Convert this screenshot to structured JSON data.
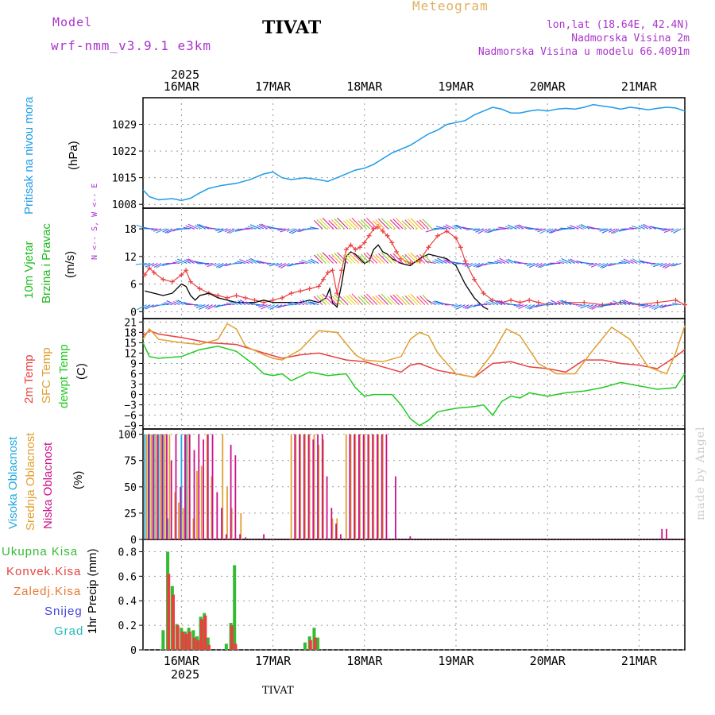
{
  "header": {
    "model_label": "Model",
    "model_name": "wrf-nmm_v3.9.1 e3km",
    "station": "TIVAT",
    "product": "Meteogram",
    "coords": "lon,lat (18.64E, 42.4N)",
    "elevation": "Nadmorska Visina 2m",
    "model_elevation": "Nadmorska Visina u modelu 66.4091m",
    "year": "2025",
    "footer_station": "TIVAT",
    "credit": "made by Angel"
  },
  "colors": {
    "pressure": "#1e9be8",
    "wind_label": "#22bb22",
    "temp2m": "#e84040",
    "sfc": "#e0a030",
    "dewpt": "#22cc22",
    "high_cloud": "#22aadd",
    "mid_cloud": "#e0a030",
    "low_cloud": "#cc1188",
    "total_precip": "#33bb33",
    "conv_precip": "#e84040",
    "freezing": "#e87830",
    "snow": "#4444dd",
    "hail": "#22bbbb",
    "wind_speed": "#000000",
    "wind_gust": "#e84040",
    "purple": "#aa33cc"
  },
  "chart_data": [
    {
      "type": "line",
      "panel": "pressure",
      "ylabel": [
        "Pritisak na nivou mora",
        "(hPa)"
      ],
      "yticks": [
        1008,
        1015,
        1022,
        1029
      ],
      "ylim": [
        1007,
        1036
      ],
      "xlim": [
        15.58,
        21.5
      ],
      "days": [
        "16MAR",
        "17MAR",
        "18MAR",
        "19MAR",
        "20MAR",
        "21MAR"
      ],
      "day_positions": [
        16,
        17,
        18,
        19,
        20,
        21
      ],
      "x": [
        15.58,
        15.65,
        15.75,
        15.9,
        16.0,
        16.1,
        16.2,
        16.3,
        16.45,
        16.6,
        16.75,
        16.9,
        17.0,
        17.1,
        17.2,
        17.35,
        17.5,
        17.6,
        17.75,
        17.9,
        18.0,
        18.1,
        18.2,
        18.3,
        18.4,
        18.5,
        18.6,
        18.7,
        18.8,
        18.9,
        19.0,
        19.1,
        19.2,
        19.3,
        19.4,
        19.5,
        19.6,
        19.7,
        19.8,
        19.9,
        20.0,
        20.1,
        20.2,
        20.3,
        20.4,
        20.5,
        20.6,
        20.7,
        20.8,
        20.9,
        21.0,
        21.1,
        21.2,
        21.3,
        21.4,
        21.5
      ],
      "values": [
        1011.8,
        1010.0,
        1009.2,
        1009.5,
        1009.0,
        1009.6,
        1011.0,
        1012.2,
        1013.0,
        1013.5,
        1014.5,
        1016.0,
        1016.5,
        1015.0,
        1014.5,
        1015.0,
        1014.5,
        1014.0,
        1015.5,
        1017.0,
        1017.5,
        1018.5,
        1020.0,
        1021.5,
        1022.5,
        1023.5,
        1025.0,
        1026.5,
        1027.5,
        1029.0,
        1029.5,
        1030.0,
        1031.5,
        1032.5,
        1033.5,
        1033.0,
        1032.0,
        1032.0,
        1032.5,
        1032.8,
        1032.5,
        1033.0,
        1033.2,
        1033.0,
        1033.5,
        1034.2,
        1033.8,
        1033.5,
        1033.0,
        1033.5,
        1033.2,
        1032.8,
        1033.2,
        1033.5,
        1033.3,
        1032.5
      ]
    },
    {
      "type": "line",
      "panel": "wind",
      "ylabel": [
        "10m Vjetar",
        "Brzina i Pravac",
        "(m/s)"
      ],
      "direction_legend": "N <-- S, W <-- E",
      "yticks": [
        0,
        6,
        12,
        18
      ],
      "ylim": [
        -1.5,
        22.5
      ],
      "series": [
        {
          "name": "speed",
          "x": [
            15.6,
            15.7,
            15.8,
            15.9,
            16.0,
            16.05,
            16.1,
            16.15,
            16.2,
            16.3,
            16.4,
            16.5,
            16.6,
            16.7,
            16.8,
            16.9,
            17.0,
            17.1,
            17.2,
            17.3,
            17.4,
            17.5,
            17.58,
            17.62,
            17.65,
            17.7,
            17.75,
            17.8,
            17.85,
            17.9,
            17.95,
            18.0,
            18.05,
            18.1,
            18.15,
            18.2,
            18.25,
            18.3,
            18.4,
            18.5,
            18.6,
            18.7,
            18.8,
            18.9,
            19.0,
            19.05,
            19.1,
            19.2,
            19.3,
            19.35
          ],
          "values": [
            4.5,
            4.0,
            3.5,
            4.0,
            6.0,
            5.5,
            3.5,
            2.5,
            3.5,
            4.0,
            3.0,
            2.5,
            2.0,
            2.0,
            2.0,
            2.5,
            2.0,
            2.0,
            2.0,
            2.0,
            2.5,
            2.0,
            3.0,
            5.0,
            2.0,
            1.0,
            6.0,
            12.0,
            13.0,
            12.5,
            11.5,
            10.5,
            11.0,
            13.5,
            14.5,
            13.0,
            12.5,
            11.5,
            10.5,
            10.0,
            11.5,
            12.5,
            12.0,
            11.5,
            10.0,
            8.0,
            6.0,
            3.0,
            1.0,
            0.5
          ]
        },
        {
          "name": "gust",
          "x": [
            15.6,
            15.65,
            15.7,
            15.8,
            15.9,
            16.0,
            16.05,
            16.1,
            16.2,
            16.3,
            16.4,
            16.5,
            16.6,
            16.7,
            16.8,
            16.9,
            17.0,
            17.1,
            17.2,
            17.3,
            17.4,
            17.5,
            17.55,
            17.6,
            17.65,
            17.7,
            17.75,
            17.8,
            17.85,
            17.9,
            17.95,
            18.0,
            18.05,
            18.1,
            18.15,
            18.2,
            18.25,
            18.3,
            18.35,
            18.4,
            18.5,
            18.6,
            18.7,
            18.8,
            18.9,
            19.0,
            19.05,
            19.1,
            19.2,
            19.3,
            19.4,
            19.5,
            19.6,
            19.7,
            19.8,
            19.9,
            20.0,
            20.2,
            20.4,
            20.6,
            20.8,
            21.0,
            21.2,
            21.4,
            21.5
          ],
          "values": [
            8.0,
            9.5,
            8.5,
            7.0,
            6.5,
            8.0,
            9.0,
            6.5,
            5.0,
            4.0,
            3.5,
            3.0,
            3.5,
            3.0,
            2.5,
            2.0,
            2.5,
            3.0,
            4.0,
            4.5,
            5.0,
            5.5,
            7.0,
            8.5,
            9.0,
            4.0,
            9.0,
            13.5,
            14.5,
            13.5,
            14.0,
            15.0,
            16.5,
            18.0,
            18.5,
            17.5,
            16.5,
            15.0,
            13.0,
            11.5,
            10.5,
            11.0,
            14.0,
            16.5,
            17.5,
            16.0,
            14.0,
            11.0,
            7.0,
            4.0,
            2.5,
            2.0,
            2.5,
            2.0,
            2.5,
            2.0,
            1.5,
            2.0,
            2.0,
            1.5,
            2.0,
            1.5,
            2.0,
            2.5,
            1.5
          ]
        }
      ]
    },
    {
      "type": "line",
      "panel": "temperature",
      "ylabel": [
        "2m Temp",
        "SFC Temp",
        "dewpt Temp",
        "(C)"
      ],
      "yticks": [
        -9,
        -6,
        -3,
        0,
        3,
        6,
        9,
        12,
        15,
        18,
        21
      ],
      "ylim": [
        -10,
        22
      ],
      "series": [
        {
          "name": "2m Temp",
          "x": [
            15.58,
            15.65,
            15.75,
            16.0,
            16.3,
            16.6,
            16.9,
            17.1,
            17.3,
            17.5,
            17.8,
            18.0,
            18.2,
            18.4,
            18.5,
            18.6,
            18.8,
            19.0,
            19.2,
            19.4,
            19.6,
            19.8,
            20.0,
            20.2,
            20.4,
            20.6,
            20.8,
            21.0,
            21.2,
            21.4,
            21.5
          ],
          "values": [
            17.0,
            18.5,
            17.5,
            16.5,
            15.0,
            14.5,
            12.0,
            10.5,
            11.5,
            12.0,
            10.0,
            9.5,
            8.0,
            6.5,
            8.5,
            9.0,
            7.0,
            6.0,
            5.0,
            9.0,
            9.5,
            8.0,
            7.5,
            6.5,
            10.0,
            10.0,
            9.0,
            8.5,
            7.5,
            11.0,
            13.0
          ]
        },
        {
          "name": "SFC Temp",
          "x": [
            15.58,
            15.65,
            15.75,
            16.0,
            16.2,
            16.4,
            16.5,
            16.6,
            16.7,
            16.9,
            17.0,
            17.1,
            17.3,
            17.5,
            17.7,
            17.9,
            18.0,
            18.2,
            18.4,
            18.5,
            18.6,
            18.7,
            18.8,
            19.0,
            19.2,
            19.4,
            19.55,
            19.7,
            19.9,
            20.1,
            20.3,
            20.5,
            20.7,
            20.9,
            21.1,
            21.3,
            21.4,
            21.5
          ],
          "values": [
            16.0,
            19.0,
            16.0,
            15.0,
            14.5,
            16.0,
            20.5,
            19.0,
            14.0,
            11.5,
            10.5,
            10.0,
            13.0,
            18.5,
            18.0,
            11.5,
            10.0,
            9.5,
            11.0,
            16.0,
            18.0,
            17.0,
            12.0,
            6.0,
            5.0,
            12.0,
            19.0,
            17.0,
            9.0,
            6.0,
            6.0,
            13.0,
            19.5,
            16.0,
            8.0,
            6.0,
            12.0,
            20.0
          ]
        },
        {
          "name": "dewpt Temp",
          "x": [
            15.58,
            15.65,
            15.75,
            16.0,
            16.2,
            16.4,
            16.6,
            16.8,
            16.9,
            17.0,
            17.1,
            17.2,
            17.4,
            17.6,
            17.8,
            17.9,
            18.0,
            18.1,
            18.3,
            18.4,
            18.5,
            18.6,
            18.7,
            18.8,
            19.0,
            19.2,
            19.3,
            19.4,
            19.5,
            19.6,
            19.7,
            19.8,
            20.0,
            20.2,
            20.4,
            20.6,
            20.8,
            21.0,
            21.2,
            21.4,
            21.5
          ],
          "values": [
            15.0,
            11.0,
            10.5,
            11.0,
            13.0,
            14.0,
            12.5,
            8.5,
            6.0,
            5.5,
            6.0,
            4.0,
            6.5,
            5.5,
            6.0,
            2.0,
            -0.5,
            0.0,
            0.0,
            -3.0,
            -7.0,
            -9.0,
            -7.5,
            -5.0,
            -4.0,
            -3.5,
            -3.0,
            -6.0,
            -2.0,
            -0.5,
            -1.0,
            0.5,
            -0.5,
            0.5,
            1.0,
            2.0,
            3.5,
            2.5,
            1.5,
            2.0,
            6.0
          ]
        }
      ]
    },
    {
      "type": "bar",
      "panel": "clouds",
      "ylabel": [
        "Visoka Oblacnost",
        "Srednja Oblacnost",
        "Niska Oblacnost",
        "(%)"
      ],
      "yticks": [
        0,
        25,
        50,
        75,
        100
      ],
      "ylim": [
        0,
        105
      ],
      "series": [
        {
          "name": "Visoka Oblacnost",
          "x": [
            15.6,
            15.65,
            15.7,
            15.75,
            15.8,
            15.85,
            15.9,
            16.0,
            16.05
          ],
          "values": [
            100,
            100,
            100,
            100,
            100,
            20,
            0,
            100,
            100
          ]
        },
        {
          "name": "Srednja Oblacnost",
          "x": [
            15.62,
            15.67,
            15.72,
            15.77,
            15.82,
            15.87,
            15.93,
            15.97,
            16.02,
            16.07,
            16.13,
            16.17,
            16.22,
            16.28,
            16.33,
            16.45,
            16.5,
            16.55,
            16.65,
            17.2,
            17.25,
            17.3,
            17.35,
            17.4,
            17.45,
            17.5,
            17.55,
            17.65,
            17.7,
            17.8,
            17.85,
            17.9,
            17.95,
            18.0,
            18.05,
            18.1,
            18.15,
            18.2
          ],
          "values": [
            100,
            100,
            100,
            100,
            100,
            100,
            45,
            35,
            30,
            100,
            20,
            65,
            70,
            100,
            60,
            100,
            50,
            30,
            25,
            100,
            100,
            100,
            100,
            100,
            100,
            90,
            95,
            20,
            20,
            100,
            100,
            100,
            100,
            100,
            100,
            100,
            100,
            100
          ]
        },
        {
          "name": "Niska Oblacnost",
          "x": [
            15.64,
            15.69,
            15.74,
            15.79,
            15.84,
            15.89,
            15.94,
            15.99,
            16.04,
            16.09,
            16.14,
            16.19,
            16.24,
            16.29,
            16.34,
            16.39,
            16.44,
            16.49,
            16.54,
            16.59,
            16.64,
            16.7,
            16.9,
            17.24,
            17.29,
            17.34,
            17.39,
            17.44,
            17.49,
            17.54,
            17.59,
            17.64,
            17.69,
            17.74,
            17.84,
            17.89,
            17.94,
            17.99,
            18.04,
            18.09,
            18.14,
            18.19,
            18.24,
            18.34,
            18.5,
            21.25,
            21.3
          ],
          "values": [
            100,
            100,
            100,
            100,
            100,
            75,
            100,
            50,
            100,
            100,
            85,
            100,
            95,
            100,
            100,
            45,
            30,
            5,
            90,
            80,
            5,
            2,
            5,
            100,
            100,
            100,
            100,
            95,
            100,
            100,
            60,
            30,
            15,
            5,
            100,
            100,
            100,
            100,
            100,
            100,
            100,
            100,
            100,
            60,
            3,
            10,
            10
          ]
        }
      ]
    },
    {
      "type": "bar",
      "panel": "precipitation",
      "ylabel": [
        "1hr Precip (mm)"
      ],
      "legend": [
        "Ukupna Kisa",
        "Konvek.Kisa",
        "Zaledj.Kisa",
        "Snijeg",
        "Grad"
      ],
      "yticks": [
        0,
        0.2,
        0.4,
        0.6,
        0.8
      ],
      "ylim": [
        0,
        0.9
      ],
      "series": [
        {
          "name": "Ukupna Kisa",
          "x": [
            15.8,
            15.85,
            15.9,
            15.95,
            16.0,
            16.04,
            16.08,
            16.13,
            16.17,
            16.21,
            16.25,
            16.29,
            16.49,
            16.54,
            16.58,
            17.35,
            17.4,
            17.45,
            17.49
          ],
          "values": [
            0.16,
            0.8,
            0.52,
            0.21,
            0.18,
            0.15,
            0.18,
            0.16,
            0.11,
            0.27,
            0.3,
            0.1,
            0.05,
            0.22,
            0.69,
            0.06,
            0.11,
            0.18,
            0.1
          ]
        },
        {
          "name": "Konvek.Kisa",
          "x": [
            15.86,
            15.91,
            15.96,
            16.01,
            16.05,
            16.09,
            16.14,
            16.18,
            16.22,
            16.26,
            16.3,
            16.55,
            16.59,
            17.41,
            17.46
          ],
          "values": [
            0.62,
            0.45,
            0.2,
            0.15,
            0.13,
            0.15,
            0.1,
            0.08,
            0.25,
            0.28,
            0.04,
            0.2,
            0.05,
            0.08,
            0.1
          ]
        }
      ]
    }
  ]
}
